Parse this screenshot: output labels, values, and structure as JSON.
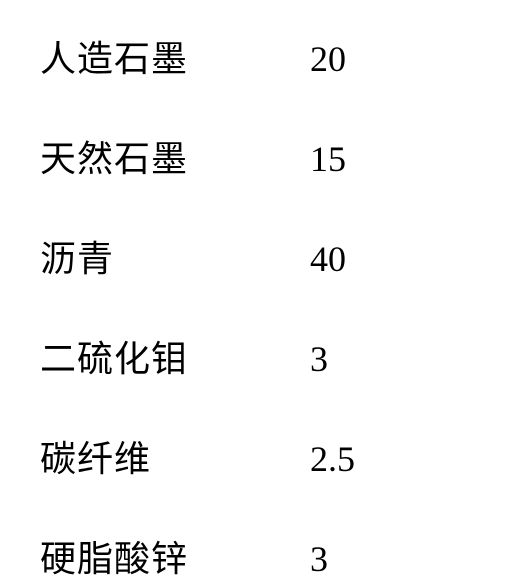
{
  "composition": {
    "rows": [
      {
        "label": "人造石墨",
        "value": "20"
      },
      {
        "label": "天然石墨",
        "value": "15"
      },
      {
        "label": "沥青",
        "value": "40"
      },
      {
        "label": "二硫化钼",
        "value": "3"
      },
      {
        "label": "碳纤维",
        "value": "2.5"
      },
      {
        "label": "硬脂酸锌",
        "value": "3"
      }
    ],
    "label_fontsize": 36,
    "value_fontsize": 36,
    "text_color": "#000000",
    "background_color": "#ffffff",
    "row_spacing": 48,
    "label_width": 270
  }
}
